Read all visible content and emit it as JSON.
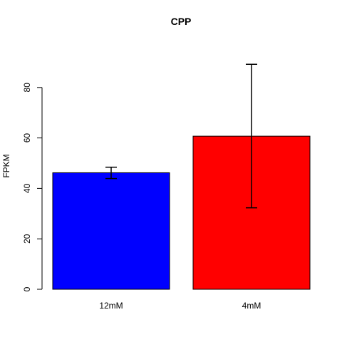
{
  "chart_data": {
    "type": "bar",
    "title": "CPP",
    "xlabel": "",
    "ylabel": "FPKM",
    "categories": [
      "12mM",
      "4mM"
    ],
    "values": [
      46.2,
      60.7
    ],
    "error_low": [
      43.9,
      32.3
    ],
    "error_high": [
      48.4,
      89.2
    ],
    "colors": [
      "#0000ff",
      "#ff0000"
    ],
    "ylim": [
      0,
      92
    ],
    "yticks": [
      0,
      20,
      40,
      60,
      80
    ],
    "grid": false,
    "legend": "none"
  }
}
